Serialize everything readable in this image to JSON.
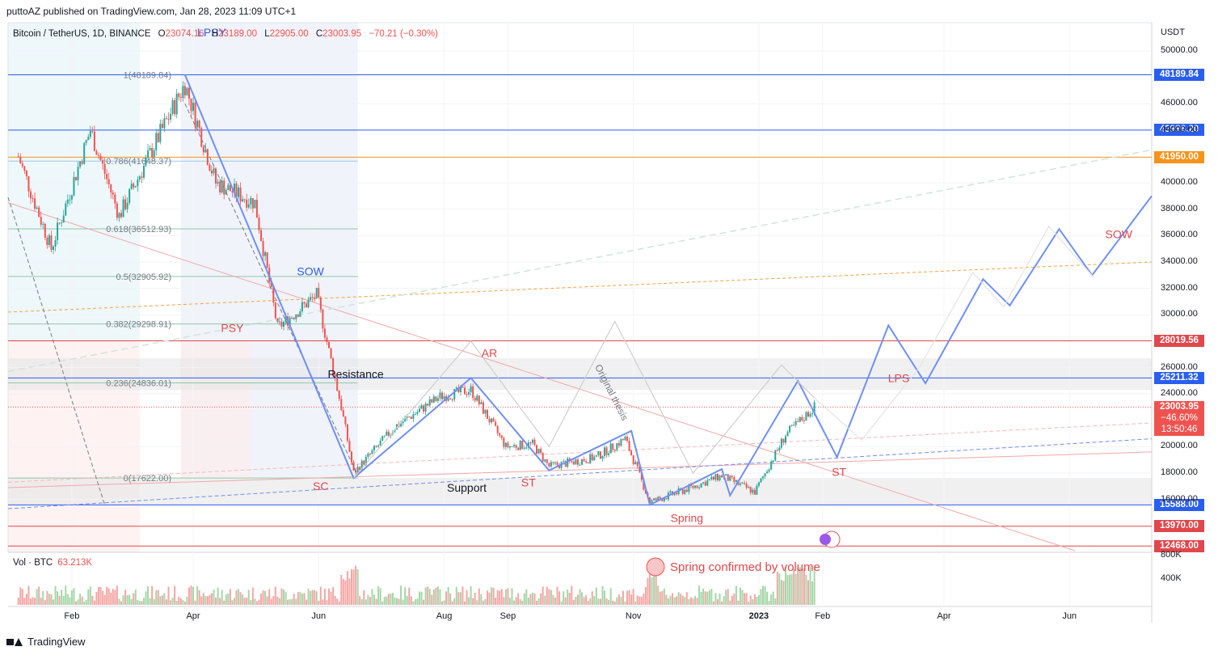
{
  "header": {
    "published": "puttoAZ published on TradingView.com, Jan 28, 2023 11:09 UTC+1",
    "symbol": "Bitcoin / TetherUS, 1D, BINANCE",
    "o_label": "O",
    "o": "23074.16",
    "h_label": "H",
    "h": "23189.00",
    "l_label": "L",
    "l": "22905.00",
    "c_label": "C",
    "c": "23003.95",
    "change": "−70.21 (−0.30%)"
  },
  "volume": {
    "label": "Vol · BTC",
    "value": "63.213K"
  },
  "footer": {
    "brand": "TradingView"
  },
  "colors": {
    "up": "#26a69a",
    "down": "#ef5350",
    "blue": "#2a5ef0",
    "orange": "#f7931a",
    "red": "#e0474c",
    "path": "#6f8ff3"
  },
  "chart_data": {
    "type": "candlestick",
    "currency": "USDT",
    "y_ticks": [
      "50000.00",
      "46000.00",
      "44000.00",
      "40000.00",
      "38000.00",
      "36000.00",
      "34000.00",
      "32000.00",
      "30000.00",
      "26000.00",
      "24000.00",
      "20000.00",
      "18000.00",
      "16000.00"
    ],
    "y_ticks_num": [
      50000,
      46000,
      44000,
      40000,
      38000,
      36000,
      34000,
      32000,
      30000,
      26000,
      24000,
      20000,
      18000,
      16000
    ],
    "x_ticks": [
      "Feb",
      "Apr",
      "Jun",
      "Aug",
      "Sep",
      "Nov",
      "2023",
      "Feb",
      "Apr",
      "Jun"
    ],
    "x_ticks_dates": [
      "2022-02-01",
      "2022-04-01",
      "2022-06-01",
      "2022-08-01",
      "2022-09-01",
      "2022-11-01",
      "2023-01-01",
      "2023-02-01",
      "2023-04-01",
      "2023-06-01"
    ],
    "volume_ticks": [
      "800K",
      "400K"
    ],
    "levels": [
      {
        "label": "48189.84",
        "value": 48189.84,
        "color": "#2a5ef0"
      },
      {
        "label": "43996.20",
        "value": 43996.2,
        "color": "#2a5ef0"
      },
      {
        "label": "41950.00",
        "value": 41950.0,
        "color": "#f7931a"
      },
      {
        "label": "28019.56",
        "value": 28019.56,
        "color": "#e0474c"
      },
      {
        "label": "25211.32",
        "value": 25211.32,
        "color": "#2a5ef0"
      },
      {
        "label": "15588.00",
        "value": 15588.0,
        "color": "#2a5ef0"
      },
      {
        "label": "13970.00",
        "value": 13970.0,
        "color": "#e0474c"
      },
      {
        "label": "12468.00",
        "value": 12468.0,
        "color": "#e0474c"
      }
    ],
    "last_price": {
      "price": "23003.95",
      "change": "−46.60%",
      "countdown": "13:50:46",
      "value": 23003.95
    },
    "fib_levels": [
      {
        "label": "1(48189.84)",
        "value": 48189.84
      },
      {
        "label": "0.786(41648.37)",
        "value": 41648.37
      },
      {
        "label": "0.618(36512.93)",
        "value": 36512.93
      },
      {
        "label": "0.5(32905.92)",
        "value": 32905.92
      },
      {
        "label": "0.382(29298.91)",
        "value": 29298.91
      },
      {
        "label": "0.236(24836.01)",
        "value": 24836.01
      },
      {
        "label": "0(17622.00)",
        "value": 17622.0
      }
    ],
    "annotations": [
      {
        "text": "LPSY",
        "color": "#2a5ef0",
        "date": "2022-04-10",
        "price": 51100
      },
      {
        "text": "SOW",
        "color": "#2a5ef0",
        "date": "2022-05-28",
        "price": 33000
      },
      {
        "text": "PSY",
        "color": "#e0474c",
        "date": "2022-04-20",
        "price": 28700
      },
      {
        "text": "AR",
        "color": "#e0474c",
        "date": "2022-08-23",
        "price": 26800
      },
      {
        "text": "SC",
        "color": "#e0474c",
        "date": "2022-06-02",
        "price": 16700
      },
      {
        "text": "ST",
        "color": "#e0474c",
        "date": "2022-09-11",
        "price": 17000
      },
      {
        "text": "Resistance",
        "color": "#131722",
        "date": "2022-06-19",
        "price": 25200
      },
      {
        "text": "Support",
        "color": "#131722",
        "date": "2022-08-12",
        "price": 16600
      },
      {
        "text": "Spring",
        "color": "#e0474c",
        "date": "2022-11-27",
        "price": 14300
      },
      {
        "text": "ST",
        "color": "#e0474c",
        "date": "2023-02-09",
        "price": 17800
      },
      {
        "text": "LPS",
        "color": "#e0474c",
        "date": "2023-03-10",
        "price": 24900
      },
      {
        "text": "SOW",
        "color": "#e0474c",
        "date": "2023-06-25",
        "price": 35800
      },
      {
        "text": "Original thesis",
        "color": "#787b86",
        "date": "2022-10-20",
        "price": 24000
      }
    ],
    "volume_note": "Spring confirmed by volume",
    "candles_summary": [
      {
        "date": "2022-01-06",
        "close": 42000
      },
      {
        "date": "2022-01-22",
        "close": 35000
      },
      {
        "date": "2022-02-10",
        "close": 44000
      },
      {
        "date": "2022-02-24",
        "close": 37500
      },
      {
        "date": "2022-03-28",
        "close": 47500
      },
      {
        "date": "2022-04-12",
        "close": 40000
      },
      {
        "date": "2022-05-01",
        "close": 38500
      },
      {
        "date": "2022-05-12",
        "close": 29000
      },
      {
        "date": "2022-05-31",
        "close": 31500
      },
      {
        "date": "2022-06-12",
        "close": 23000
      },
      {
        "date": "2022-06-18",
        "close": 18000
      },
      {
        "date": "2022-07-08",
        "close": 21500
      },
      {
        "date": "2022-07-30",
        "close": 23800
      },
      {
        "date": "2022-08-14",
        "close": 24300
      },
      {
        "date": "2022-08-31",
        "close": 20000
      },
      {
        "date": "2022-09-13",
        "close": 20200
      },
      {
        "date": "2022-09-21",
        "close": 18500
      },
      {
        "date": "2022-10-14",
        "close": 19200
      },
      {
        "date": "2022-10-28",
        "close": 20600
      },
      {
        "date": "2022-11-09",
        "close": 15800
      },
      {
        "date": "2022-11-24",
        "close": 16600
      },
      {
        "date": "2022-12-14",
        "close": 17800
      },
      {
        "date": "2022-12-30",
        "close": 16550
      },
      {
        "date": "2023-01-14",
        "close": 20900
      },
      {
        "date": "2023-01-28",
        "close": 23004
      }
    ]
  }
}
